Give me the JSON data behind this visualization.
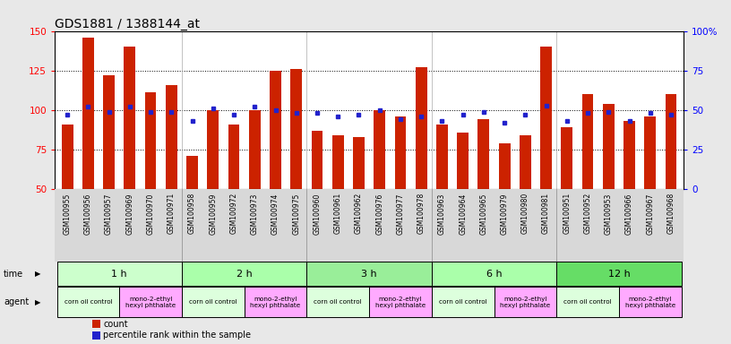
{
  "title": "GDS1881 / 1388144_at",
  "samples": [
    "GSM100955",
    "GSM100956",
    "GSM100957",
    "GSM100969",
    "GSM100970",
    "GSM100971",
    "GSM100958",
    "GSM100959",
    "GSM100972",
    "GSM100973",
    "GSM100974",
    "GSM100975",
    "GSM100960",
    "GSM100961",
    "GSM100962",
    "GSM100976",
    "GSM100977",
    "GSM100978",
    "GSM100963",
    "GSM100964",
    "GSM100965",
    "GSM100979",
    "GSM100980",
    "GSM100981",
    "GSM100951",
    "GSM100952",
    "GSM100953",
    "GSM100966",
    "GSM100967",
    "GSM100968"
  ],
  "counts": [
    91,
    146,
    122,
    140,
    111,
    116,
    71,
    100,
    91,
    100,
    125,
    126,
    87,
    84,
    83,
    100,
    96,
    127,
    91,
    86,
    94,
    79,
    84,
    140,
    89,
    110,
    104,
    93,
    96,
    110
  ],
  "percentiles": [
    47,
    52,
    49,
    52,
    49,
    49,
    43,
    51,
    47,
    52,
    50,
    48,
    48,
    46,
    47,
    50,
    44,
    46,
    43,
    47,
    49,
    42,
    47,
    53,
    43,
    48,
    49,
    43,
    48,
    47
  ],
  "time_groups": [
    {
      "label": "1 h",
      "start": 0,
      "end": 6,
      "color": "#ccffcc"
    },
    {
      "label": "2 h",
      "start": 6,
      "end": 12,
      "color": "#aaffaa"
    },
    {
      "label": "3 h",
      "start": 12,
      "end": 18,
      "color": "#99ee99"
    },
    {
      "label": "6 h",
      "start": 18,
      "end": 24,
      "color": "#aaffaa"
    },
    {
      "label": "12 h",
      "start": 24,
      "end": 30,
      "color": "#66dd66"
    }
  ],
  "agent_groups": [
    {
      "label": "corn oil control",
      "start": 0,
      "end": 3,
      "color": "#ddffdd"
    },
    {
      "label": "mono-2-ethyl\nhexyl phthalate",
      "start": 3,
      "end": 6,
      "color": "#ffaaff"
    },
    {
      "label": "corn oil control",
      "start": 6,
      "end": 9,
      "color": "#ddffdd"
    },
    {
      "label": "mono-2-ethyl\nhexyl phthalate",
      "start": 9,
      "end": 12,
      "color": "#ffaaff"
    },
    {
      "label": "corn oil control",
      "start": 12,
      "end": 15,
      "color": "#ddffdd"
    },
    {
      "label": "mono-2-ethyl\nhexyl phthalate",
      "start": 15,
      "end": 18,
      "color": "#ffaaff"
    },
    {
      "label": "corn oil control",
      "start": 18,
      "end": 21,
      "color": "#ddffdd"
    },
    {
      "label": "mono-2-ethyl\nhexyl phthalate",
      "start": 21,
      "end": 24,
      "color": "#ffaaff"
    },
    {
      "label": "corn oil control",
      "start": 24,
      "end": 27,
      "color": "#ddffdd"
    },
    {
      "label": "mono-2-ethyl\nhexyl phthalate",
      "start": 27,
      "end": 30,
      "color": "#ffaaff"
    }
  ],
  "ylim_left": [
    50,
    150
  ],
  "ylim_right": [
    0,
    100
  ],
  "yticks_left": [
    50,
    75,
    100,
    125,
    150
  ],
  "yticks_right": [
    0,
    25,
    50,
    75,
    100
  ],
  "bar_color": "#cc2200",
  "percentile_color": "#2222cc",
  "bg_color": "#e8e8e8",
  "plot_bg": "#ffffff",
  "title_fontsize": 10,
  "bar_width": 0.55
}
